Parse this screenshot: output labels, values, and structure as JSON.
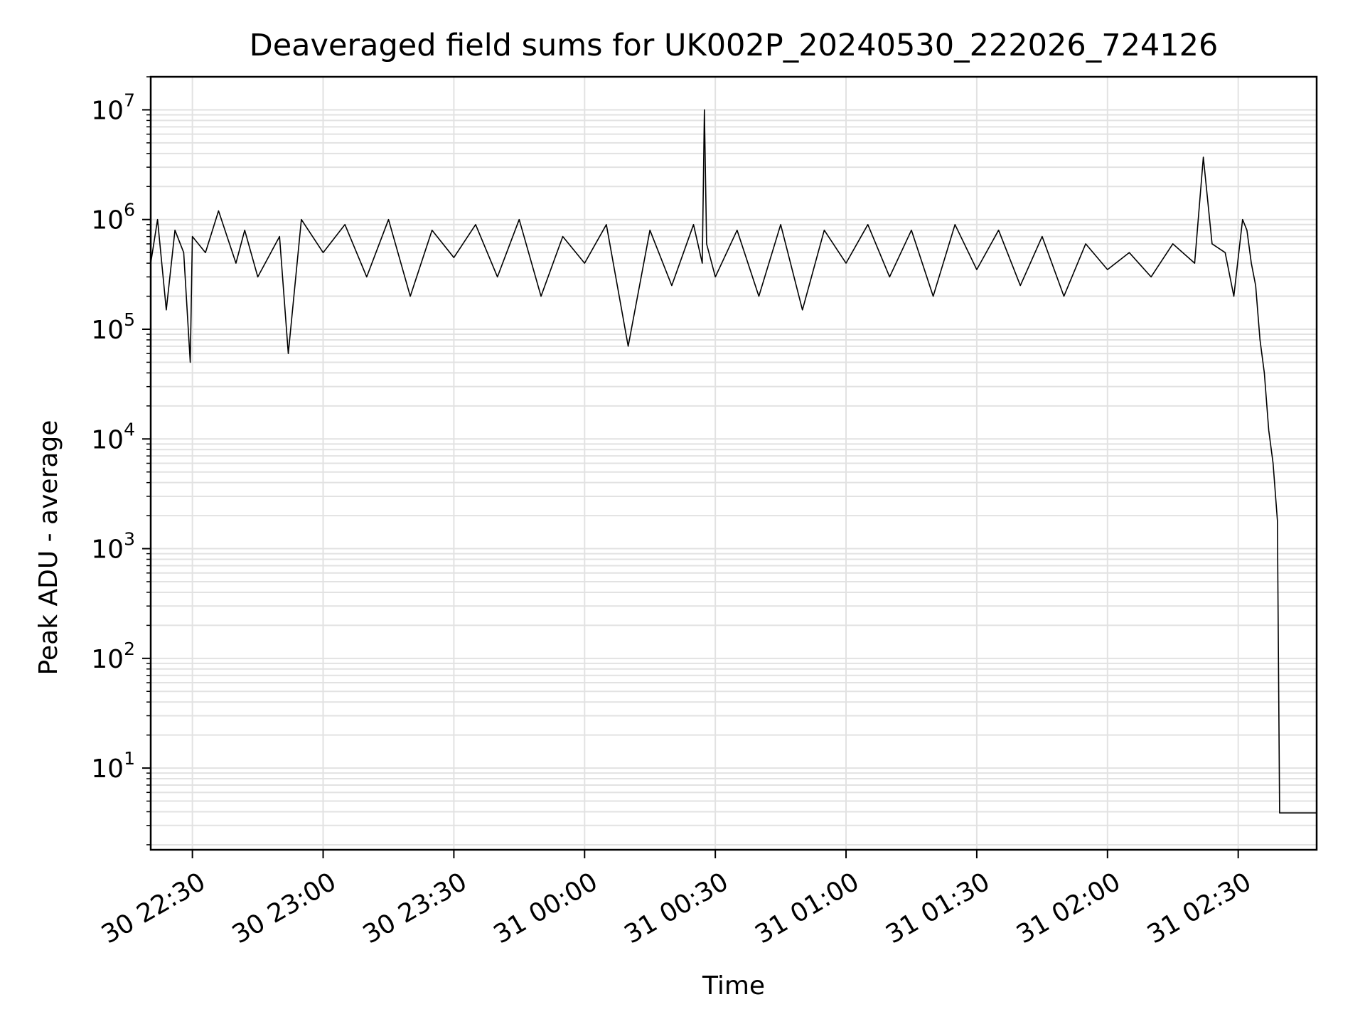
{
  "chart_data": {
    "type": "line",
    "title": "Deaveraged field sums for UK002P_20240530_222026_724126",
    "xlabel": "Time",
    "ylabel": "Peak ADU - average",
    "yscale": "log",
    "ylim": [
      1.8,
      20000000
    ],
    "xlim": [
      "2024-05-30 22:20:26",
      "2024-05-31 02:48:00"
    ],
    "grid": "major and minor, light grey",
    "line_color": "#000000",
    "x_ticks": [
      {
        "t": "2024-05-30 22:30",
        "label": "30 22:30"
      },
      {
        "t": "2024-05-30 23:00",
        "label": "30 23:00"
      },
      {
        "t": "2024-05-30 23:30",
        "label": "30 23:30"
      },
      {
        "t": "2024-05-31 00:00",
        "label": "31 00:00"
      },
      {
        "t": "2024-05-31 00:30",
        "label": "31 00:30"
      },
      {
        "t": "2024-05-31 01:00",
        "label": "31 01:00"
      },
      {
        "t": "2024-05-31 01:30",
        "label": "31 01:30"
      },
      {
        "t": "2024-05-31 02:00",
        "label": "31 02:00"
      },
      {
        "t": "2024-05-31 02:30",
        "label": "31 02:30"
      }
    ],
    "y_ticks": [
      {
        "v": 10,
        "base": "10",
        "exp": "1"
      },
      {
        "v": 100,
        "base": "10",
        "exp": "2"
      },
      {
        "v": 1000,
        "base": "10",
        "exp": "3"
      },
      {
        "v": 10000,
        "base": "10",
        "exp": "4"
      },
      {
        "v": 100000,
        "base": "10",
        "exp": "5"
      },
      {
        "v": 1000000,
        "base": "10",
        "exp": "6"
      },
      {
        "v": 10000000,
        "base": "10",
        "exp": "7"
      }
    ],
    "series": [
      {
        "x": [
          "2024-05-30 22:20:26",
          "2024-05-30 22:22:00",
          "2024-05-30 22:24:00",
          "2024-05-30 22:26:00",
          "2024-05-30 22:28:00",
          "2024-05-30 22:29:30",
          "2024-05-30 22:30:00",
          "2024-05-30 22:33:00",
          "2024-05-30 22:36:00",
          "2024-05-30 22:40:00",
          "2024-05-30 22:42:00",
          "2024-05-30 22:45:00",
          "2024-05-30 22:50:00",
          "2024-05-30 22:52:00",
          "2024-05-30 22:55:00",
          "2024-05-30 23:00:00",
          "2024-05-30 23:05:00",
          "2024-05-30 23:10:00",
          "2024-05-30 23:15:00",
          "2024-05-30 23:20:00",
          "2024-05-30 23:25:00",
          "2024-05-30 23:30:00",
          "2024-05-30 23:35:00",
          "2024-05-30 23:40:00",
          "2024-05-30 23:45:00",
          "2024-05-30 23:50:00",
          "2024-05-30 23:55:00",
          "2024-05-31 00:00:00",
          "2024-05-31 00:05:00",
          "2024-05-31 00:10:00",
          "2024-05-31 00:15:00",
          "2024-05-31 00:20:00",
          "2024-05-31 00:25:00",
          "2024-05-31 00:27:00",
          "2024-05-31 00:27:30",
          "2024-05-31 00:28:00",
          "2024-05-31 00:30:00",
          "2024-05-31 00:35:00",
          "2024-05-31 00:40:00",
          "2024-05-31 00:45:00",
          "2024-05-31 00:50:00",
          "2024-05-31 00:55:00",
          "2024-05-31 01:00:00",
          "2024-05-31 01:05:00",
          "2024-05-31 01:10:00",
          "2024-05-31 01:15:00",
          "2024-05-31 01:20:00",
          "2024-05-31 01:25:00",
          "2024-05-31 01:30:00",
          "2024-05-31 01:35:00",
          "2024-05-31 01:40:00",
          "2024-05-31 01:45:00",
          "2024-05-31 01:50:00",
          "2024-05-31 01:55:00",
          "2024-05-31 02:00:00",
          "2024-05-31 02:05:00",
          "2024-05-31 02:10:00",
          "2024-05-31 02:15:00",
          "2024-05-31 02:20:00",
          "2024-05-31 02:22:00",
          "2024-05-31 02:24:00",
          "2024-05-31 02:27:00",
          "2024-05-31 02:29:00",
          "2024-05-31 02:31:00",
          "2024-05-31 02:32:00",
          "2024-05-31 02:33:00",
          "2024-05-31 02:34:00",
          "2024-05-31 02:35:00",
          "2024-05-31 02:36:00",
          "2024-05-31 02:37:00",
          "2024-05-31 02:38:00",
          "2024-05-31 02:39:00",
          "2024-05-31 02:39:30",
          "2024-05-31 02:40:00",
          "2024-05-31 02:44:00",
          "2024-05-31 02:48:00"
        ],
        "y": [
          400000,
          1000000,
          150000,
          800000,
          500000,
          50000,
          700000,
          500000,
          1200000,
          400000,
          800000,
          300000,
          700000,
          60000,
          1000000,
          500000,
          900000,
          300000,
          1000000,
          200000,
          800000,
          450000,
          900000,
          300000,
          1000000,
          200000,
          700000,
          400000,
          900000,
          70000,
          800000,
          250000,
          900000,
          400000,
          10000000,
          600000,
          300000,
          800000,
          200000,
          900000,
          150000,
          800000,
          400000,
          900000,
          300000,
          800000,
          200000,
          900000,
          350000,
          800000,
          250000,
          700000,
          200000,
          600000,
          350000,
          500000,
          300000,
          600000,
          400000,
          3700000,
          600000,
          500000,
          200000,
          1000000,
          800000,
          400000,
          250000,
          80000,
          40000,
          12000,
          6000,
          1800,
          3.9,
          3.9,
          3.9,
          3.9
        ]
      }
    ]
  }
}
